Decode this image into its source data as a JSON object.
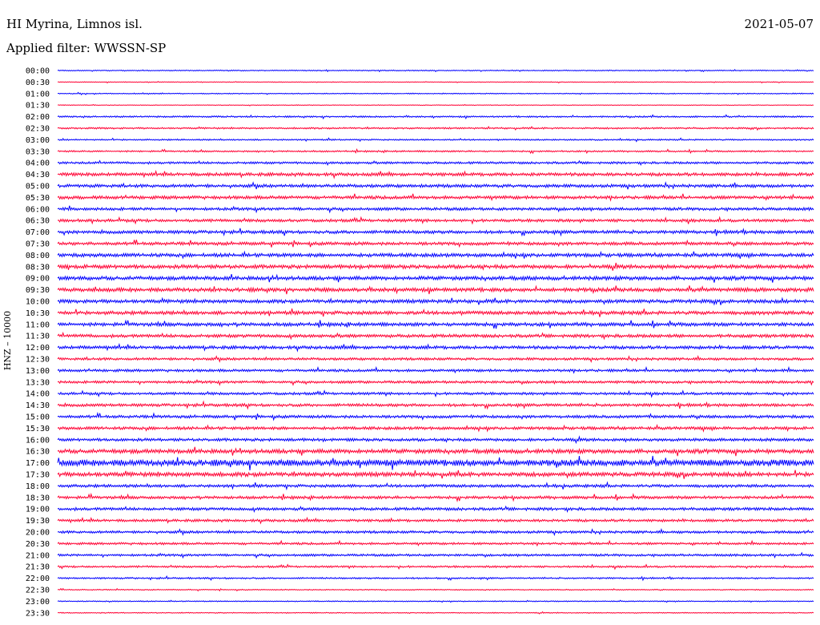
{
  "header": {
    "station": "HI Myrina, Limnos isl.",
    "date": "2021-05-07",
    "filter": "Applied filter: WWSSN-SP",
    "channel_label": "HNZ – 10000"
  },
  "chart_data": {
    "type": "line",
    "description_kind": "helicorder",
    "ylabel": "HNZ – 10000",
    "rows": [
      {
        "label": "00:00",
        "color": "#0000ff",
        "level": 0.05
      },
      {
        "label": "00:30",
        "color": "#ff0033",
        "level": 0.0
      },
      {
        "label": "01:00",
        "color": "#0000ff",
        "level": 0.05
      },
      {
        "label": "01:30",
        "color": "#ff0033",
        "level": 0.0
      },
      {
        "label": "02:00",
        "color": "#0000ff",
        "level": 0.15
      },
      {
        "label": "02:30",
        "color": "#ff0033",
        "level": 0.15
      },
      {
        "label": "03:00",
        "color": "#0000ff",
        "level": 0.12
      },
      {
        "label": "03:30",
        "color": "#ff0033",
        "level": 0.15
      },
      {
        "label": "04:00",
        "color": "#0000ff",
        "level": 0.25
      },
      {
        "label": "04:30",
        "color": "#ff0033",
        "level": 0.4
      },
      {
        "label": "05:00",
        "color": "#0000ff",
        "level": 0.4
      },
      {
        "label": "05:30",
        "color": "#ff0033",
        "level": 0.4
      },
      {
        "label": "06:00",
        "color": "#0000ff",
        "level": 0.35
      },
      {
        "label": "06:30",
        "color": "#ff0033",
        "level": 0.35
      },
      {
        "label": "07:00",
        "color": "#0000ff",
        "level": 0.4
      },
      {
        "label": "07:30",
        "color": "#ff0033",
        "level": 0.4
      },
      {
        "label": "08:00",
        "color": "#0000ff",
        "level": 0.45
      },
      {
        "label": "08:30",
        "color": "#ff0033",
        "level": 0.5
      },
      {
        "label": "09:00",
        "color": "#0000ff",
        "level": 0.5
      },
      {
        "label": "09:30",
        "color": "#ff0033",
        "level": 0.5
      },
      {
        "label": "10:00",
        "color": "#0000ff",
        "level": 0.45
      },
      {
        "label": "10:30",
        "color": "#ff0033",
        "level": 0.45
      },
      {
        "label": "11:00",
        "color": "#0000ff",
        "level": 0.45
      },
      {
        "label": "11:30",
        "color": "#ff0033",
        "level": 0.4
      },
      {
        "label": "12:00",
        "color": "#0000ff",
        "level": 0.4
      },
      {
        "label": "12:30",
        "color": "#ff0033",
        "level": 0.3
      },
      {
        "label": "13:00",
        "color": "#0000ff",
        "level": 0.3
      },
      {
        "label": "13:30",
        "color": "#ff0033",
        "level": 0.3
      },
      {
        "label": "14:00",
        "color": "#0000ff",
        "level": 0.3
      },
      {
        "label": "14:30",
        "color": "#ff0033",
        "level": 0.35
      },
      {
        "label": "15:00",
        "color": "#0000ff",
        "level": 0.35
      },
      {
        "label": "15:30",
        "color": "#ff0033",
        "level": 0.35
      },
      {
        "label": "16:00",
        "color": "#0000ff",
        "level": 0.35
      },
      {
        "label": "16:30",
        "color": "#ff0033",
        "level": 0.55
      },
      {
        "label": "17:00",
        "color": "#0000ff",
        "level": 0.9
      },
      {
        "label": "17:30",
        "color": "#ff0033",
        "level": 0.55
      },
      {
        "label": "18:00",
        "color": "#0000ff",
        "level": 0.35
      },
      {
        "label": "18:30",
        "color": "#ff0033",
        "level": 0.35
      },
      {
        "label": "19:00",
        "color": "#0000ff",
        "level": 0.35
      },
      {
        "label": "19:30",
        "color": "#ff0033",
        "level": 0.3
      },
      {
        "label": "20:00",
        "color": "#0000ff",
        "level": 0.3
      },
      {
        "label": "20:30",
        "color": "#ff0033",
        "level": 0.25
      },
      {
        "label": "21:00",
        "color": "#0000ff",
        "level": 0.25
      },
      {
        "label": "21:30",
        "color": "#ff0033",
        "level": 0.2
      },
      {
        "label": "22:00",
        "color": "#0000ff",
        "level": 0.15
      },
      {
        "label": "22:30",
        "color": "#ff0033",
        "level": 0.05
      },
      {
        "label": "23:00",
        "color": "#0000ff",
        "level": 0.05
      },
      {
        "label": "23:30",
        "color": "#ff0033",
        "level": 0.05
      }
    ]
  }
}
